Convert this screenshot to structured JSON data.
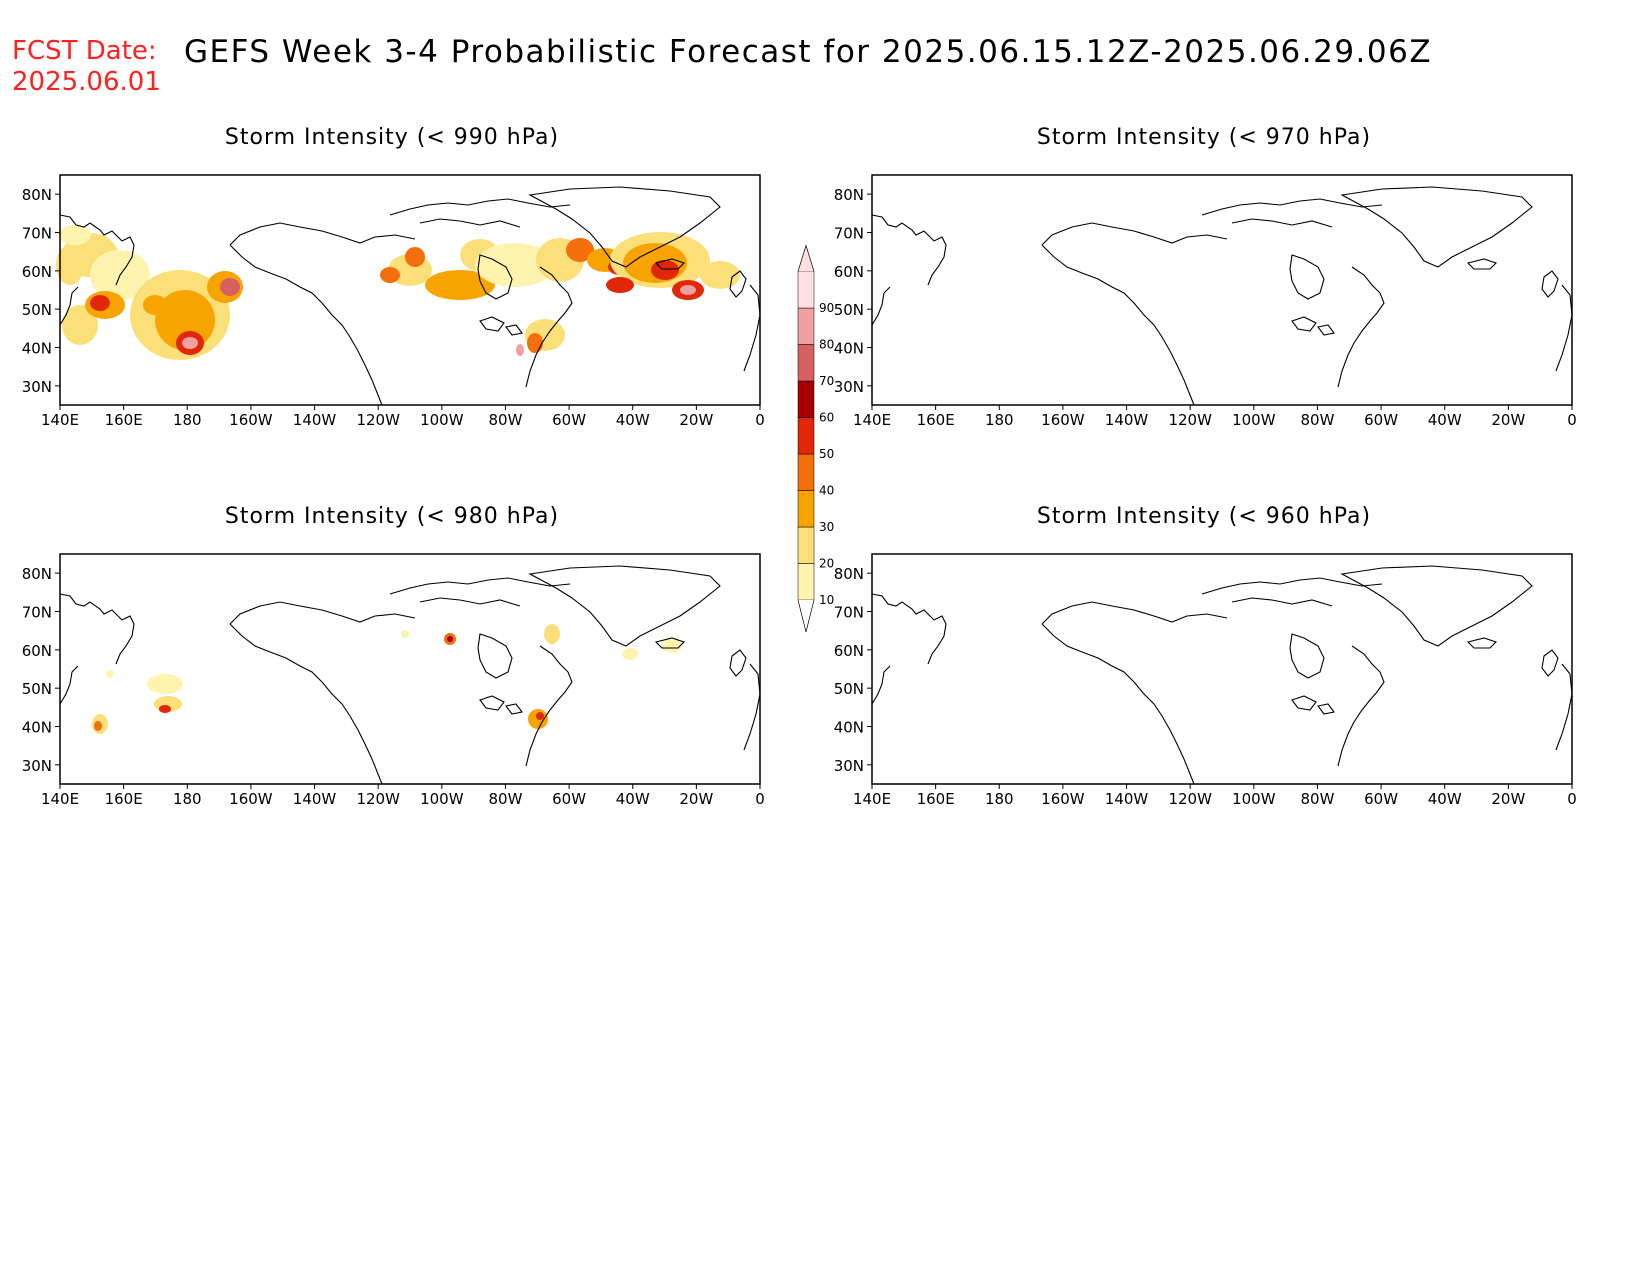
{
  "header": {
    "fcst_label": "FCST Date:",
    "fcst_date": "2025.06.01",
    "title": "GEFS Week 3-4 Probabilistic Forecast for 2025.06.15.12Z-2025.06.29.06Z"
  },
  "lat_labels": [
    "80N",
    "70N",
    "60N",
    "50N",
    "40N",
    "30N"
  ],
  "lon_labels": [
    "140E",
    "160E",
    "180",
    "160W",
    "140W",
    "120W",
    "100W",
    "80W",
    "60W",
    "40W",
    "20W",
    "0"
  ],
  "panels": [
    {
      "id": "p990",
      "title": "Storm Intensity (< 990 hPa)"
    },
    {
      "id": "p970",
      "title": "Storm Intensity (< 970 hPa)"
    },
    {
      "id": "p980",
      "title": "Storm Intensity (< 980 hPa)"
    },
    {
      "id": "p960",
      "title": "Storm Intensity (< 960 hPa)"
    }
  ],
  "colorbar": {
    "levels": [
      "10",
      "20",
      "30",
      "40",
      "50",
      "60",
      "70",
      "80",
      "90"
    ],
    "colors": [
      "#fff3b0",
      "#fbe07a",
      "#f7a400",
      "#f26f0c",
      "#e02808",
      "#a80000",
      "#d96060",
      "#f0a0a0",
      "#ffe0e0"
    ]
  }
}
